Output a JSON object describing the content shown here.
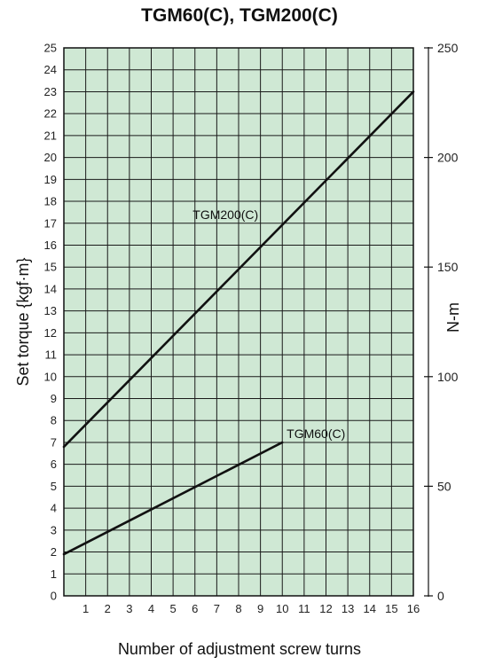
{
  "chart_data": {
    "type": "line",
    "title": "TGM60(C), TGM200(C)",
    "xlabel": "Number of adjustment screw turns",
    "ylabel": "Set torque {kgf·m}",
    "y2label": "N-m",
    "xlim": [
      0,
      16
    ],
    "ylim": [
      0,
      25
    ],
    "y2lim": [
      0,
      250
    ],
    "x_ticks": [
      "1",
      "2",
      "3",
      "4",
      "5",
      "6",
      "7",
      "8",
      "9",
      "10",
      "11",
      "12",
      "13",
      "14",
      "15",
      "16"
    ],
    "y_ticks": [
      "0",
      "1",
      "2",
      "3",
      "4",
      "5",
      "6",
      "7",
      "8",
      "9",
      "10",
      "11",
      "12",
      "13",
      "14",
      "15",
      "16",
      "17",
      "18",
      "19",
      "20",
      "21",
      "22",
      "23",
      "24",
      "25"
    ],
    "y2_ticks": [
      "0",
      "50",
      "100",
      "150",
      "200",
      "250"
    ],
    "grid": true,
    "plot_background": "#cfe8d4",
    "series": [
      {
        "name": "TGM200(C)",
        "x": [
          0,
          16
        ],
        "y": [
          6.8,
          23
        ]
      },
      {
        "name": "TGM60(C)",
        "x": [
          0,
          10
        ],
        "y": [
          1.9,
          7.0
        ]
      }
    ]
  }
}
